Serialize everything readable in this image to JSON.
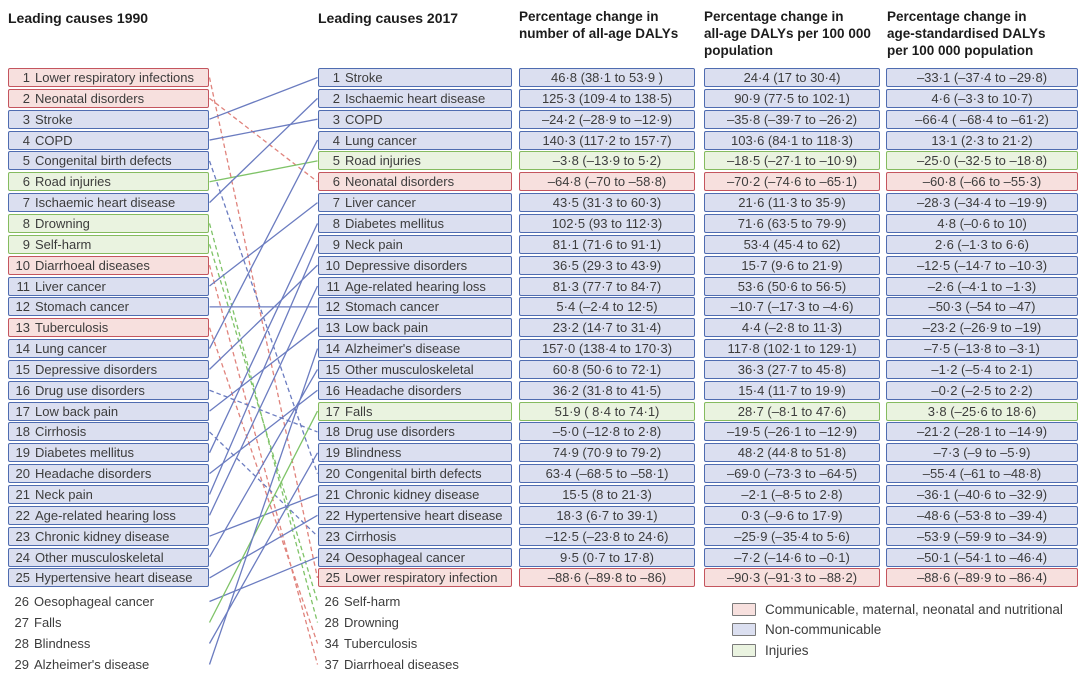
{
  "col1990": {
    "title": "Leading causes 1990",
    "items": [
      {
        "rank": "1",
        "label": "Lower respiratory infections",
        "category": "cmnn",
        "boxed": true
      },
      {
        "rank": "2",
        "label": "Neonatal disorders",
        "category": "cmnn",
        "boxed": true
      },
      {
        "rank": "3",
        "label": "Stroke",
        "category": "ncd",
        "boxed": true
      },
      {
        "rank": "4",
        "label": "COPD",
        "category": "ncd",
        "boxed": true
      },
      {
        "rank": "5",
        "label": "Congenital birth defects",
        "category": "ncd",
        "boxed": true
      },
      {
        "rank": "6",
        "label": "Road injuries",
        "category": "inj",
        "boxed": true
      },
      {
        "rank": "7",
        "label": "Ischaemic heart disease",
        "category": "ncd",
        "boxed": true
      },
      {
        "rank": "8",
        "label": "Drowning",
        "category": "inj",
        "boxed": true
      },
      {
        "rank": "9",
        "label": "Self-harm",
        "category": "inj",
        "boxed": true
      },
      {
        "rank": "10",
        "label": "Diarrhoeal diseases",
        "category": "cmnn",
        "boxed": true
      },
      {
        "rank": "11",
        "label": "Liver cancer",
        "category": "ncd",
        "boxed": true
      },
      {
        "rank": "12",
        "label": "Stomach cancer",
        "category": "ncd",
        "boxed": true
      },
      {
        "rank": "13",
        "label": "Tuberculosis",
        "category": "cmnn",
        "boxed": true
      },
      {
        "rank": "14",
        "label": "Lung cancer",
        "category": "ncd",
        "boxed": true
      },
      {
        "rank": "15",
        "label": "Depressive disorders",
        "category": "ncd",
        "boxed": true
      },
      {
        "rank": "16",
        "label": "Drug use disorders",
        "category": "ncd",
        "boxed": true
      },
      {
        "rank": "17",
        "label": "Low back pain",
        "category": "ncd",
        "boxed": true
      },
      {
        "rank": "18",
        "label": "Cirrhosis",
        "category": "ncd",
        "boxed": true
      },
      {
        "rank": "19",
        "label": "Diabetes mellitus",
        "category": "ncd",
        "boxed": true
      },
      {
        "rank": "20",
        "label": "Headache disorders",
        "category": "ncd",
        "boxed": true
      },
      {
        "rank": "21",
        "label": "Neck pain",
        "category": "ncd",
        "boxed": true
      },
      {
        "rank": "22",
        "label": "Age-related hearing loss",
        "category": "ncd",
        "boxed": true
      },
      {
        "rank": "23",
        "label": "Chronic kidney disease",
        "category": "ncd",
        "boxed": true
      },
      {
        "rank": "24",
        "label": "Other musculoskeletal",
        "category": "ncd",
        "boxed": true
      },
      {
        "rank": "25",
        "label": "Hypertensive heart disease",
        "category": "ncd",
        "boxed": true
      },
      {
        "rank": "26",
        "label": "Oesophageal cancer",
        "category": "ncd",
        "boxed": false
      },
      {
        "rank": "27",
        "label": "Falls",
        "category": "inj",
        "boxed": false
      },
      {
        "rank": "28",
        "label": "Blindness",
        "category": "ncd",
        "boxed": false
      },
      {
        "rank": "29",
        "label": "Alzheimer's disease",
        "category": "ncd",
        "boxed": false
      }
    ]
  },
  "col2017": {
    "title": "Leading causes 2017",
    "items": [
      {
        "rank": "1",
        "label": "Stroke",
        "category": "ncd",
        "boxed": true
      },
      {
        "rank": "2",
        "label": "Ischaemic heart disease",
        "category": "ncd",
        "boxed": true
      },
      {
        "rank": "3",
        "label": "COPD",
        "category": "ncd",
        "boxed": true
      },
      {
        "rank": "4",
        "label": "Lung cancer",
        "category": "ncd",
        "boxed": true
      },
      {
        "rank": "5",
        "label": "Road injuries",
        "category": "inj",
        "boxed": true
      },
      {
        "rank": "6",
        "label": "Neonatal disorders",
        "category": "cmnn",
        "boxed": true
      },
      {
        "rank": "7",
        "label": "Liver cancer",
        "category": "ncd",
        "boxed": true
      },
      {
        "rank": "8",
        "label": "Diabetes mellitus",
        "category": "ncd",
        "boxed": true
      },
      {
        "rank": "9",
        "label": "Neck pain",
        "category": "ncd",
        "boxed": true
      },
      {
        "rank": "10",
        "label": "Depressive disorders",
        "category": "ncd",
        "boxed": true
      },
      {
        "rank": "11",
        "label": "Age-related hearing loss",
        "category": "ncd",
        "boxed": true
      },
      {
        "rank": "12",
        "label": "Stomach cancer",
        "category": "ncd",
        "boxed": true
      },
      {
        "rank": "13",
        "label": "Low back pain",
        "category": "ncd",
        "boxed": true
      },
      {
        "rank": "14",
        "label": "Alzheimer's disease",
        "category": "ncd",
        "boxed": true
      },
      {
        "rank": "15",
        "label": "Other musculoskeletal",
        "category": "ncd",
        "boxed": true
      },
      {
        "rank": "16",
        "label": "Headache disorders",
        "category": "ncd",
        "boxed": true
      },
      {
        "rank": "17",
        "label": "Falls",
        "category": "inj",
        "boxed": true
      },
      {
        "rank": "18",
        "label": "Drug use disorders",
        "category": "ncd",
        "boxed": true
      },
      {
        "rank": "19",
        "label": "Blindness",
        "category": "ncd",
        "boxed": true
      },
      {
        "rank": "20",
        "label": "Congenital birth defects",
        "category": "ncd",
        "boxed": true
      },
      {
        "rank": "21",
        "label": "Chronic kidney disease",
        "category": "ncd",
        "boxed": true
      },
      {
        "rank": "22",
        "label": "Hypertensive heart disease",
        "category": "ncd",
        "boxed": true
      },
      {
        "rank": "23",
        "label": "Cirrhosis",
        "category": "ncd",
        "boxed": true
      },
      {
        "rank": "24",
        "label": "Oesophageal cancer",
        "category": "ncd",
        "boxed": true
      },
      {
        "rank": "25",
        "label": "Lower respiratory infection",
        "category": "cmnn",
        "boxed": true
      },
      {
        "rank": "26",
        "label": "Self-harm",
        "category": "inj",
        "boxed": false
      },
      {
        "rank": "28",
        "label": "Drowning",
        "category": "inj",
        "boxed": false
      },
      {
        "rank": "34",
        "label": "Tuberculosis",
        "category": "cmnn",
        "boxed": false
      },
      {
        "rank": "37",
        "label": "Diarrhoeal diseases",
        "category": "cmnn",
        "boxed": false
      }
    ]
  },
  "value_columns": [
    {
      "header": "Percentage change in\nnumber of all-age DALYs",
      "values": [
        "46·8 (38·1 to 53·9 )",
        "125·3 (109·4 to 138·5)",
        "–24·2 (–28·9 to –12·9)",
        "140·3 (117·2 to 157·7)",
        "–3·8 (–13·9 to 5·2)",
        "–64·8 (–70 to –58·8)",
        "43·5 (31·3 to 60·3)",
        "102·5 (93 to 112·3)",
        "81·1 (71·6 to 91·1)",
        "36·5 (29·3 to 43·9)",
        "81·3 (77·7 to 84·7)",
        "5·4 (–2·4 to 12·5)",
        "23·2 (14·7 to 31·4)",
        "157·0 (138·4 to 170·3)",
        "60·8 (50·6 to 72·1)",
        "36·2 (31·8 to 41·5)",
        "51·9 ( 8·4 to 74·1)",
        "–5·0 (–12·8 to 2·8)",
        "74·9 (70·9 to 79·2)",
        "63·4 (–68·5 to –58·1)",
        "15·5 (8 to 21·3)",
        "18·3 (6·7 to 39·1)",
        "–12·5 (–23·8 to 24·6)",
        "9·5 (0·7 to 17·8)",
        "–88·6 (–89·8 to –86)"
      ]
    },
    {
      "header": "Percentage change in\nall-age DALYs per 100 000\npopulation",
      "values": [
        "24·4 (17 to 30·4)",
        "90·9 (77·5 to 102·1)",
        "–35·8 (–39·7 to –26·2)",
        "103·6 (84·1 to 118·3)",
        "–18·5 (–27·1 to –10·9)",
        "–70·2 (–74·6 to –65·1)",
        "21·6 (11·3 to 35·9)",
        "71·6 (63·5 to 79·9)",
        "53·4 (45·4 to 62)",
        "15·7 (9·6 to 21·9)",
        "53·6 (50·6 to 56·5)",
        "–10·7 (–17·3 to –4·6)",
        "4·4 (–2·8 to 11·3)",
        "117·8 (102·1 to 129·1)",
        "36·3 (27·7 to 45·8)",
        "15·4 (11·7 to 19·9)",
        "28·7 (–8·1 to 47·6)",
        "–19·5 (–26·1 to –12·9)",
        "48·2 (44·8 to 51·8)",
        "–69·0 (–73·3 to –64·5)",
        "–2·1 (–8·5 to 2·8)",
        "0·3 (–9·6 to 17·9)",
        "–25·9 (–35·4 to 5·6)",
        "–7·2 (–14·6 to –0·1)",
        "–90·3 (–91·3 to –88·2)"
      ]
    },
    {
      "header": "Percentage change in\nage-standardised DALYs\nper 100 000 population",
      "values": [
        "–33·1 (–37·4 to –29·8)",
        "4·6 (–3·3 to 10·7)",
        "–66·4 ( –68·4 to –61·2)",
        "13·1 (2·3 to 21·2)",
        "–25·0 (–32·5 to –18·8)",
        "–60·8 (–66 to –55·3)",
        "–28·3 (–34·4 to –19·9)",
        "4·8 (–0·6 to 10)",
        "2·6 (–1·3 to 6·6)",
        "–12·5 (–14·7 to –10·3)",
        "–2·6 (–4·1 to –1·3)",
        "–50·3 (–54 to –47)",
        "–23·2 (–26·9 to –19)",
        "–7·5 (–13·8 to –3·1)",
        "–1·2 (–5·4 to 2·1)",
        "–0·2 (–2·5 to 2·2)",
        "3·8 (–25·6 to 18·6)",
        "–21·2 (–28·1 to –14·9)",
        "–7·3 (–9 to –5·9)",
        "–55·4 (–61 to –48·8)",
        "–36·1 (–40·6 to –32·9)",
        "–48·6 (–53·8 to –39·4)",
        "–53·9 (–59·9 to –34·9)",
        "–50·1 (–54·1 to –46·4)",
        "–88·6 (–89·9 to –86·4)"
      ]
    }
  ],
  "links": [
    [
      1,
      25
    ],
    [
      2,
      6
    ],
    [
      3,
      1
    ],
    [
      4,
      3
    ],
    [
      5,
      20
    ],
    [
      6,
      5
    ],
    [
      7,
      2
    ],
    [
      8,
      28
    ],
    [
      9,
      26
    ],
    [
      10,
      37
    ],
    [
      11,
      7
    ],
    [
      12,
      12
    ],
    [
      13,
      34
    ],
    [
      14,
      4
    ],
    [
      15,
      10
    ],
    [
      16,
      18
    ],
    [
      17,
      13
    ],
    [
      18,
      23
    ],
    [
      19,
      8
    ],
    [
      20,
      16
    ],
    [
      21,
      9
    ],
    [
      22,
      11
    ],
    [
      23,
      21
    ],
    [
      24,
      15
    ],
    [
      25,
      22
    ],
    [
      26,
      24
    ],
    [
      27,
      17
    ],
    [
      28,
      19
    ],
    [
      29,
      14
    ]
  ],
  "legend": {
    "items": [
      {
        "label": "Communicable, maternal, neonatal and nutritional",
        "category": "cmnn"
      },
      {
        "label": "Non-communicable",
        "category": "ncd"
      },
      {
        "label": "Injuries",
        "category": "inj"
      }
    ]
  },
  "colors": {
    "cmnn": {
      "fill": "#f7e0de",
      "border": "#c4555e",
      "line": "#e0837c"
    },
    "ncd": {
      "fill": "#dbdff0",
      "border": "#4f6cb0",
      "line": "#6b7cc0"
    },
    "inj": {
      "fill": "#eaf3e0",
      "border": "#85bb5f",
      "line": "#7fc368"
    }
  },
  "chart_data": {
    "type": "table",
    "columns_key": [
      "rank_2017",
      "rank_1990",
      "cause",
      "group",
      "pct_change_all_age_DALYs",
      "pct_change_all_age_DALYs_per_100000",
      "pct_change_age_standardised_DALYs_per_100000"
    ],
    "rows": [
      [
        1,
        3,
        "Stroke",
        "Non-communicable",
        "46·8 (38·1 to 53·9 )",
        "24·4 (17 to 30·4)",
        "–33·1 (–37·4 to –29·8)"
      ],
      [
        2,
        7,
        "Ischaemic heart disease",
        "Non-communicable",
        "125·3 (109·4 to 138·5)",
        "90·9 (77·5 to 102·1)",
        "4·6 (–3·3 to 10·7)"
      ],
      [
        3,
        4,
        "COPD",
        "Non-communicable",
        "–24·2 (–28·9 to –12·9)",
        "–35·8 (–39·7 to –26·2)",
        "–66·4 ( –68·4 to –61·2)"
      ],
      [
        4,
        14,
        "Lung cancer",
        "Non-communicable",
        "140·3 (117·2 to 157·7)",
        "103·6 (84·1 to 118·3)",
        "13·1 (2·3 to 21·2)"
      ],
      [
        5,
        6,
        "Road injuries",
        "Injuries",
        "–3·8 (–13·9 to 5·2)",
        "–18·5 (–27·1 to –10·9)",
        "–25·0 (–32·5 to –18·8)"
      ],
      [
        6,
        2,
        "Neonatal disorders",
        "Communicable, maternal, neonatal and nutritional",
        "–64·8 (–70 to –58·8)",
        "–70·2 (–74·6 to –65·1)",
        "–60·8 (–66 to –55·3)"
      ],
      [
        7,
        11,
        "Liver cancer",
        "Non-communicable",
        "43·5 (31·3 to 60·3)",
        "21·6 (11·3 to 35·9)",
        "–28·3 (–34·4 to –19·9)"
      ],
      [
        8,
        19,
        "Diabetes mellitus",
        "Non-communicable",
        "102·5 (93 to 112·3)",
        "71·6 (63·5 to 79·9)",
        "4·8 (–0·6 to 10)"
      ],
      [
        9,
        21,
        "Neck pain",
        "Non-communicable",
        "81·1 (71·6 to 91·1)",
        "53·4 (45·4 to 62)",
        "2·6 (–1·3 to 6·6)"
      ],
      [
        10,
        15,
        "Depressive disorders",
        "Non-communicable",
        "36·5 (29·3 to 43·9)",
        "15·7 (9·6 to 21·9)",
        "–12·5 (–14·7 to –10·3)"
      ],
      [
        11,
        22,
        "Age-related hearing loss",
        "Non-communicable",
        "81·3 (77·7 to 84·7)",
        "53·6 (50·6 to 56·5)",
        "–2·6 (–4·1 to –1·3)"
      ],
      [
        12,
        12,
        "Stomach cancer",
        "Non-communicable",
        "5·4 (–2·4 to 12·5)",
        "–10·7 (–17·3 to –4·6)",
        "–50·3 (–54 to –47)"
      ],
      [
        13,
        17,
        "Low back pain",
        "Non-communicable",
        "23·2 (14·7 to 31·4)",
        "4·4 (–2·8 to 11·3)",
        "–23·2 (–26·9 to –19)"
      ],
      [
        14,
        29,
        "Alzheimer's disease",
        "Non-communicable",
        "157·0 (138·4 to 170·3)",
        "117·8 (102·1 to 129·1)",
        "–7·5 (–13·8 to –3·1)"
      ],
      [
        15,
        24,
        "Other musculoskeletal",
        "Non-communicable",
        "60·8 (50·6 to 72·1)",
        "36·3 (27·7 to 45·8)",
        "–1·2 (–5·4 to 2·1)"
      ],
      [
        16,
        20,
        "Headache disorders",
        "Non-communicable",
        "36·2 (31·8 to 41·5)",
        "15·4 (11·7 to 19·9)",
        "–0·2 (–2·5 to 2·2)"
      ],
      [
        17,
        27,
        "Falls",
        "Injuries",
        "51·9 ( 8·4 to 74·1)",
        "28·7 (–8·1 to 47·6)",
        "3·8 (–25·6 to 18·6)"
      ],
      [
        18,
        16,
        "Drug use disorders",
        "Non-communicable",
        "–5·0 (–12·8 to 2·8)",
        "–19·5 (–26·1 to –12·9)",
        "–21·2 (–28·1 to –14·9)"
      ],
      [
        19,
        28,
        "Blindness",
        "Non-communicable",
        "74·9 (70·9 to 79·2)",
        "48·2 (44·8 to 51·8)",
        "–7·3 (–9 to –5·9)"
      ],
      [
        20,
        5,
        "Congenital birth defects",
        "Non-communicable",
        "63·4 (–68·5 to –58·1)",
        "–69·0 (–73·3 to –64·5)",
        "–55·4 (–61 to –48·8)"
      ],
      [
        21,
        23,
        "Chronic kidney disease",
        "Non-communicable",
        "15·5 (8 to 21·3)",
        "–2·1 (–8·5 to 2·8)",
        "–36·1 (–40·6 to –32·9)"
      ],
      [
        22,
        25,
        "Hypertensive heart disease",
        "Non-communicable",
        "18·3 (6·7 to 39·1)",
        "0·3 (–9·6 to 17·9)",
        "–48·6 (–53·8 to –39·4)"
      ],
      [
        23,
        18,
        "Cirrhosis",
        "Non-communicable",
        "–12·5 (–23·8 to 24·6)",
        "–25·9 (–35·4 to 5·6)",
        "–53·9 (–59·9 to –34·9)"
      ],
      [
        24,
        26,
        "Oesophageal cancer",
        "Non-communicable",
        "9·5 (0·7 to 17·8)",
        "–7·2 (–14·6 to –0·1)",
        "–50·1 (–54·1 to –46·4)"
      ],
      [
        25,
        1,
        "Lower respiratory infections",
        "Communicable, maternal, neonatal and nutritional",
        "–88·6 (–89·8 to –86)",
        "–90·3 (–91·3 to –88·2)",
        "–88·6 (–89·9 to –86·4)"
      ],
      [
        26,
        9,
        "Self-harm",
        "Injuries",
        null,
        null,
        null
      ],
      [
        28,
        8,
        "Drowning",
        "Injuries",
        null,
        null,
        null
      ],
      [
        34,
        13,
        "Tuberculosis",
        "Communicable, maternal, neonatal and nutritional",
        null,
        null,
        null
      ],
      [
        37,
        10,
        "Diarrhoeal diseases",
        "Communicable, maternal, neonatal and nutritional",
        null,
        null,
        null
      ]
    ],
    "legend": [
      "Communicable, maternal, neonatal and nutritional",
      "Non-communicable",
      "Injuries"
    ],
    "line_style_note": "solid line = rank improved or unchanged, dashed line = rank worsened"
  }
}
